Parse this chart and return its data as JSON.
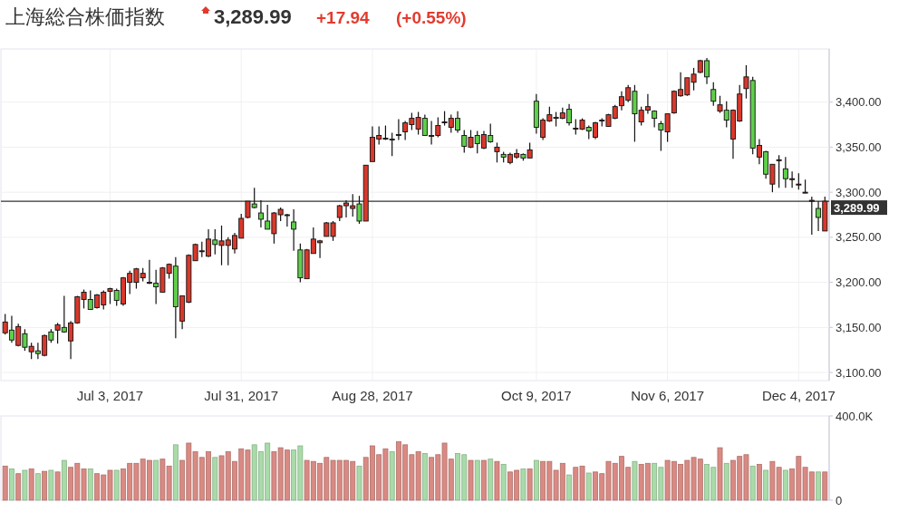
{
  "chart_data": [
    {
      "type": "candlestick",
      "title": "上海総合株価指数",
      "annotations": [
        "3,289.99",
        "+17.94",
        "(+0.55%)"
      ],
      "categories": [
        null,
        null,
        null,
        null,
        null,
        null,
        null,
        null,
        null,
        null,
        null,
        null,
        null,
        null,
        null,
        null,
        "Jul 3, 2017",
        null,
        null,
        null,
        null,
        null,
        null,
        null,
        null,
        null,
        null,
        null,
        null,
        null,
        null,
        null,
        null,
        null,
        null,
        null,
        "Jul 31, 2017",
        null,
        null,
        null,
        null,
        null,
        null,
        null,
        null,
        null,
        null,
        null,
        null,
        null,
        null,
        null,
        null,
        null,
        null,
        null,
        "Aug 28, 2017",
        null,
        null,
        null,
        null,
        null,
        null,
        null,
        null,
        null,
        null,
        null,
        null,
        null,
        null,
        null,
        null,
        null,
        null,
        null,
        null,
        null,
        null,
        null,
        null,
        "Oct 9, 2017",
        null,
        null,
        null,
        null,
        null,
        null,
        null,
        null,
        null,
        null,
        null,
        null,
        null,
        null,
        null,
        null,
        null,
        null,
        null,
        "Nov 6, 2017",
        null,
        null,
        null,
        null,
        null,
        null,
        null,
        null,
        null,
        null,
        null,
        null,
        null,
        null,
        null,
        null,
        null,
        null,
        null,
        "Dec 4, 2017",
        null,
        null,
        null,
        null
      ],
      "ohlc": [
        [
          3144,
          3165,
          3142,
          3156
        ],
        [
          3147,
          3163,
          3133,
          3136
        ],
        [
          3130,
          3154,
          3129,
          3151
        ],
        [
          3143,
          3148,
          3124,
          3128
        ],
        [
          3123,
          3133,
          3115,
          3129
        ],
        [
          3124,
          3133,
          3115,
          3121
        ],
        [
          3119,
          3142,
          3118,
          3141
        ],
        [
          3145,
          3148,
          3133,
          3136
        ],
        [
          3147,
          3155,
          3132,
          3153
        ],
        [
          3150,
          3185,
          3144,
          3145
        ],
        [
          3135,
          3157,
          3115,
          3155
        ],
        [
          3155,
          3185,
          3154,
          3184
        ],
        [
          3181,
          3192,
          3171,
          3189
        ],
        [
          3181,
          3191,
          3170,
          3170
        ],
        [
          3172,
          3187,
          3171,
          3186
        ],
        [
          3175,
          3191,
          3170,
          3189
        ],
        [
          3190,
          3194,
          3176,
          3193
        ],
        [
          3191,
          3193,
          3174,
          3180
        ],
        [
          3176,
          3206,
          3174,
          3205
        ],
        [
          3200,
          3213,
          3187,
          3210
        ],
        [
          3200,
          3216,
          3193,
          3215
        ],
        [
          3205,
          3216,
          3201,
          3210
        ],
        [
          3199,
          3225,
          3198,
          3200
        ],
        [
          3199,
          3214,
          3176,
          3195
        ],
        [
          3189,
          3217,
          3189,
          3216
        ],
        [
          3210,
          3221,
          3204,
          3220
        ],
        [
          3218,
          3228,
          3138,
          3173
        ],
        [
          3157,
          3185,
          3148,
          3185
        ],
        [
          3178,
          3231,
          3177,
          3230
        ],
        [
          3224,
          3243,
          3224,
          3242
        ],
        [
          3234,
          3245,
          3228,
          3235
        ],
        [
          3229,
          3259,
          3228,
          3248
        ],
        [
          3247,
          3259,
          3231,
          3242
        ],
        [
          3241,
          3263,
          3219,
          3246
        ],
        [
          3241,
          3250,
          3219,
          3247
        ],
        [
          3237,
          3255,
          3232,
          3252
        ],
        [
          3249,
          3276,
          3249,
          3271
        ],
        [
          3272,
          3290,
          3271,
          3290
        ],
        [
          3287,
          3305,
          3282,
          3283
        ],
        [
          3277,
          3291,
          3261,
          3270
        ],
        [
          3268,
          3286,
          3259,
          3259
        ],
        [
          3254,
          3278,
          3243,
          3277
        ],
        [
          3275,
          3283,
          3268,
          3281
        ],
        [
          3275,
          3276,
          3262,
          3275
        ],
        [
          3267,
          3281,
          3235,
          3259
        ],
        [
          3236,
          3243,
          3200,
          3205
        ],
        [
          3204,
          3237,
          3204,
          3236
        ],
        [
          3232,
          3261,
          3232,
          3248
        ],
        [
          3244,
          3247,
          3227,
          3246
        ],
        [
          3251,
          3267,
          3251,
          3266
        ],
        [
          3251,
          3268,
          3246,
          3266
        ],
        [
          3272,
          3286,
          3268,
          3285
        ],
        [
          3285,
          3291,
          3272,
          3288
        ],
        [
          3282,
          3298,
          3273,
          3285
        ],
        [
          3287,
          3296,
          3265,
          3268
        ],
        [
          3268,
          3330,
          3268,
          3330
        ],
        [
          3334,
          3373,
          3334,
          3361
        ],
        [
          3359,
          3373,
          3353,
          3363
        ],
        [
          3360,
          3374,
          3358,
          3360
        ],
        [
          3359,
          3366,
          3340,
          3358
        ],
        [
          3364,
          3381,
          3358,
          3364
        ],
        [
          3367,
          3379,
          3358,
          3377
        ],
        [
          3375,
          3388,
          3369,
          3382
        ],
        [
          3370,
          3389,
          3364,
          3383
        ],
        [
          3382,
          3386,
          3363,
          3363
        ],
        [
          3363,
          3379,
          3353,
          3363
        ],
        [
          3363,
          3383,
          3361,
          3374
        ],
        [
          3378,
          3390,
          3374,
          3378
        ],
        [
          3372,
          3386,
          3366,
          3382
        ],
        [
          3382,
          3390,
          3366,
          3369
        ],
        [
          3363,
          3369,
          3344,
          3351
        ],
        [
          3350,
          3369,
          3349,
          3361
        ],
        [
          3363,
          3368,
          3343,
          3354
        ],
        [
          3349,
          3368,
          3348,
          3364
        ],
        [
          3363,
          3376,
          3355,
          3356
        ],
        [
          3345,
          3355,
          3333,
          3350
        ],
        [
          3342,
          3345,
          3333,
          3339
        ],
        [
          3333,
          3344,
          3331,
          3342
        ],
        [
          3339,
          3348,
          3337,
          3343
        ],
        [
          3342,
          3343,
          3335,
          3338
        ],
        [
          3338,
          3355,
          3338,
          3347
        ],
        [
          3401,
          3409,
          3365,
          3372
        ],
        [
          3361,
          3382,
          3358,
          3380
        ],
        [
          3379,
          3395,
          3378,
          3386
        ],
        [
          3383,
          3389,
          3373,
          3383
        ],
        [
          3382,
          3394,
          3381,
          3388
        ],
        [
          3392,
          3398,
          3374,
          3377
        ],
        [
          3371,
          3381,
          3364,
          3371
        ],
        [
          3370,
          3382,
          3369,
          3380
        ],
        [
          3372,
          3374,
          3359,
          3368
        ],
        [
          3361,
          3378,
          3359,
          3377
        ],
        [
          3379,
          3382,
          3373,
          3380
        ],
        [
          3373,
          3387,
          3373,
          3386
        ],
        [
          3382,
          3397,
          3381,
          3395
        ],
        [
          3396,
          3412,
          3391,
          3406
        ],
        [
          3402,
          3419,
          3400,
          3416
        ],
        [
          3412,
          3419,
          3356,
          3387
        ],
        [
          3378,
          3395,
          3374,
          3391
        ],
        [
          3391,
          3409,
          3387,
          3395
        ],
        [
          3390,
          3391,
          3372,
          3382
        ],
        [
          3376,
          3379,
          3346,
          3369
        ],
        [
          3367,
          3387,
          3356,
          3387
        ],
        [
          3388,
          3413,
          3387,
          3412
        ],
        [
          3407,
          3433,
          3406,
          3414
        ],
        [
          3408,
          3427,
          3407,
          3427
        ],
        [
          3422,
          3438,
          3413,
          3431
        ],
        [
          3433,
          3447,
          3432,
          3446
        ],
        [
          3446,
          3449,
          3420,
          3428
        ],
        [
          3414,
          3422,
          3396,
          3401
        ],
        [
          3390,
          3407,
          3388,
          3397
        ],
        [
          3391,
          3401,
          3372,
          3380
        ],
        [
          3359,
          3392,
          3337,
          3391
        ],
        [
          3379,
          3419,
          3378,
          3409
        ],
        [
          3415,
          3441,
          3404,
          3428
        ],
        [
          3424,
          3428,
          3342,
          3349
        ],
        [
          3339,
          3359,
          3331,
          3352
        ],
        [
          3345,
          3346,
          3315,
          3320
        ],
        [
          3309,
          3331,
          3300,
          3331
        ],
        [
          3335,
          3341,
          3305,
          3336
        ],
        [
          3326,
          3339,
          3305,
          3315
        ],
        [
          3315,
          3323,
          3305,
          3315
        ],
        [
          3308,
          3321,
          3303,
          3309
        ],
        [
          3300,
          3314,
          3299,
          3300
        ],
        [
          3290,
          3295,
          3253,
          3291
        ],
        [
          3282,
          3290,
          3257,
          3272
        ],
        [
          3257,
          3295,
          3257,
          3290
        ]
      ],
      "colors": [
        "#d9382b",
        "#5fcf4a",
        "#d9382b",
        "#5fcf4a",
        "#d9382b",
        "#5fcf4a",
        "#d9382b",
        "#5fcf4a",
        "#d9382b",
        "#5fcf4a",
        "#d9382b",
        "#d9382b",
        "#d9382b",
        "#5fcf4a",
        "#d9382b",
        "#d9382b",
        "#d9382b",
        "#5fcf4a",
        "#d9382b",
        "#d9382b",
        "#d9382b",
        "#d9382b",
        "#d9382b",
        "#5fcf4a",
        "#d9382b",
        "#d9382b",
        "#5fcf4a",
        "#d9382b",
        "#d9382b",
        "#d9382b",
        "#d9382b",
        "#d9382b",
        "#5fcf4a",
        "#d9382b",
        "#d9382b",
        "#d9382b",
        "#d9382b",
        "#d9382b",
        "#5fcf4a",
        "#5fcf4a",
        "#5fcf4a",
        "#d9382b",
        "#d9382b",
        "#d9382b",
        "#5fcf4a",
        "#5fcf4a",
        "#d9382b",
        "#d9382b",
        "#d9382b",
        "#d9382b",
        "#d9382b",
        "#d9382b",
        "#d9382b",
        "#d9382b",
        "#5fcf4a",
        "#d9382b",
        "#d9382b",
        "#d9382b",
        "#d9382b",
        "#5fcf4a",
        "#d9382b",
        "#d9382b",
        "#d9382b",
        "#d9382b",
        "#5fcf4a",
        "#d9382b",
        "#d9382b",
        "#d9382b",
        "#d9382b",
        "#5fcf4a",
        "#5fcf4a",
        "#d9382b",
        "#5fcf4a",
        "#d9382b",
        "#5fcf4a",
        "#d9382b",
        "#5fcf4a",
        "#d9382b",
        "#d9382b",
        "#5fcf4a",
        "#d9382b",
        "#5fcf4a",
        "#d9382b",
        "#d9382b",
        "#d9382b",
        "#d9382b",
        "#5fcf4a",
        "#d9382b",
        "#d9382b",
        "#5fcf4a",
        "#d9382b",
        "#d9382b",
        "#d9382b",
        "#d9382b",
        "#d9382b",
        "#d9382b",
        "#5fcf4a",
        "#d9382b",
        "#d9382b",
        "#5fcf4a",
        "#5fcf4a",
        "#d9382b",
        "#d9382b",
        "#d9382b",
        "#d9382b",
        "#d9382b",
        "#d9382b",
        "#5fcf4a",
        "#5fcf4a",
        "#d9382b",
        "#5fcf4a",
        "#d9382b",
        "#d9382b",
        "#d9382b",
        "#5fcf4a",
        "#d9382b",
        "#5fcf4a",
        "#d9382b",
        "#d9382b",
        "#5fcf4a",
        "#d9382b",
        "#d9382b",
        "#d9382b",
        "#d9382b",
        "#5fcf4a",
        "#d9382b"
      ],
      "ylim": [
        3091,
        3459
      ],
      "yticks": [
        {
          "value": 3100,
          "label": "3,100.00"
        },
        {
          "value": 3150,
          "label": "3,150.00"
        },
        {
          "value": 3200,
          "label": "3,200.00"
        },
        {
          "value": 3250,
          "label": "3,250.00"
        },
        {
          "value": 3300,
          "label": "3,300.00"
        },
        {
          "value": 3350,
          "label": "3,350.00"
        },
        {
          "value": 3400,
          "label": "3,400.00"
        }
      ],
      "grid": true,
      "ref_lines": [
        {
          "axis": "y",
          "value": 3289.99,
          "label": "3,289.99",
          "color": "#333333"
        }
      ]
    },
    {
      "type": "bar",
      "categories": [
        null,
        null,
        null,
        null,
        null,
        null,
        null,
        null,
        null,
        null,
        null,
        null,
        null,
        null,
        null,
        null,
        null,
        null,
        null,
        null,
        null,
        null,
        null,
        null,
        null,
        null,
        null,
        null,
        null,
        null,
        null,
        null,
        null,
        null,
        null,
        null,
        null,
        null,
        null,
        null,
        null,
        null,
        null,
        null,
        null,
        null,
        null,
        null,
        null,
        null,
        null,
        null,
        null,
        null,
        null,
        null,
        null,
        null,
        null,
        null,
        null,
        null,
        null,
        null,
        null,
        null,
        null,
        null,
        null,
        null,
        null,
        null,
        null,
        null,
        null,
        null,
        null,
        null,
        null,
        null,
        null,
        null,
        null,
        null,
        null,
        null,
        null,
        null,
        null,
        null,
        null,
        null,
        null,
        null,
        null,
        null,
        null,
        null,
        null,
        null,
        null,
        null,
        null,
        null,
        null,
        null,
        null,
        null,
        null,
        null,
        null,
        null,
        null,
        null,
        null,
        null,
        null,
        null,
        null,
        null,
        null,
        null,
        null,
        null,
        null,
        null
      ],
      "values": [
        162,
        148,
        126,
        142,
        148,
        126,
        137,
        142,
        134,
        189,
        156,
        175,
        148,
        148,
        126,
        120,
        142,
        142,
        148,
        175,
        175,
        195,
        189,
        189,
        195,
        162,
        263,
        189,
        271,
        230,
        203,
        230,
        203,
        211,
        230,
        184,
        244,
        238,
        263,
        230,
        271,
        230,
        249,
        238,
        238,
        258,
        189,
        184,
        175,
        203,
        189,
        189,
        189,
        184,
        162,
        203,
        258,
        216,
        244,
        230,
        277,
        263,
        216,
        230,
        222,
        203,
        216,
        271,
        195,
        222,
        216,
        189,
        189,
        189,
        195,
        184,
        170,
        134,
        142,
        148,
        148,
        189,
        184,
        184,
        142,
        175,
        120,
        156,
        162,
        129,
        134,
        126,
        184,
        175,
        208,
        156,
        184,
        170,
        175,
        175,
        156,
        189,
        184,
        170,
        189,
        203,
        195,
        170,
        156,
        249,
        175,
        189,
        208,
        216,
        162,
        170,
        142,
        184,
        156,
        142,
        148,
        208,
        156,
        134,
        134,
        134
      ],
      "colors": [
        "#d98a83",
        "#a9dba9",
        "#d98a83",
        "#a9dba9",
        "#d98a83",
        "#a9dba9",
        "#d98a83",
        "#a9dba9",
        "#d98a83",
        "#a9dba9",
        "#d98a83",
        "#d98a83",
        "#d98a83",
        "#a9dba9",
        "#d98a83",
        "#d98a83",
        "#d98a83",
        "#a9dba9",
        "#d98a83",
        "#d98a83",
        "#d98a83",
        "#d98a83",
        "#d98a83",
        "#a9dba9",
        "#d98a83",
        "#d98a83",
        "#a9dba9",
        "#d98a83",
        "#d98a83",
        "#d98a83",
        "#d98a83",
        "#d98a83",
        "#a9dba9",
        "#d98a83",
        "#d98a83",
        "#d98a83",
        "#d98a83",
        "#d98a83",
        "#a9dba9",
        "#a9dba9",
        "#a9dba9",
        "#d98a83",
        "#d98a83",
        "#d98a83",
        "#a9dba9",
        "#a9dba9",
        "#d98a83",
        "#d98a83",
        "#d98a83",
        "#d98a83",
        "#d98a83",
        "#d98a83",
        "#d98a83",
        "#d98a83",
        "#a9dba9",
        "#d98a83",
        "#d98a83",
        "#d98a83",
        "#d98a83",
        "#a9dba9",
        "#d98a83",
        "#d98a83",
        "#d98a83",
        "#d98a83",
        "#a9dba9",
        "#d98a83",
        "#d98a83",
        "#d98a83",
        "#d98a83",
        "#a9dba9",
        "#a9dba9",
        "#d98a83",
        "#a9dba9",
        "#d98a83",
        "#a9dba9",
        "#d98a83",
        "#a9dba9",
        "#d98a83",
        "#d98a83",
        "#a9dba9",
        "#d98a83",
        "#a9dba9",
        "#d98a83",
        "#d98a83",
        "#d98a83",
        "#d98a83",
        "#a9dba9",
        "#d98a83",
        "#d98a83",
        "#a9dba9",
        "#d98a83",
        "#d98a83",
        "#d98a83",
        "#d98a83",
        "#d98a83",
        "#d98a83",
        "#a9dba9",
        "#d98a83",
        "#d98a83",
        "#a9dba9",
        "#a9dba9",
        "#d98a83",
        "#d98a83",
        "#d98a83",
        "#d98a83",
        "#d98a83",
        "#d98a83",
        "#a9dba9",
        "#a9dba9",
        "#d98a83",
        "#a9dba9",
        "#d98a83",
        "#d98a83",
        "#d98a83",
        "#a9dba9",
        "#d98a83",
        "#a9dba9",
        "#d98a83",
        "#d98a83",
        "#a9dba9",
        "#d98a83",
        "#d98a83",
        "#d98a83",
        "#d98a83",
        "#a9dba9",
        "#d98a83"
      ],
      "ylim": [
        0,
        400
      ],
      "yticks": [
        {
          "value": 0,
          "label": "0"
        },
        {
          "value": 400,
          "label": "400.0K"
        }
      ],
      "tick_labels": "y"
    }
  ]
}
